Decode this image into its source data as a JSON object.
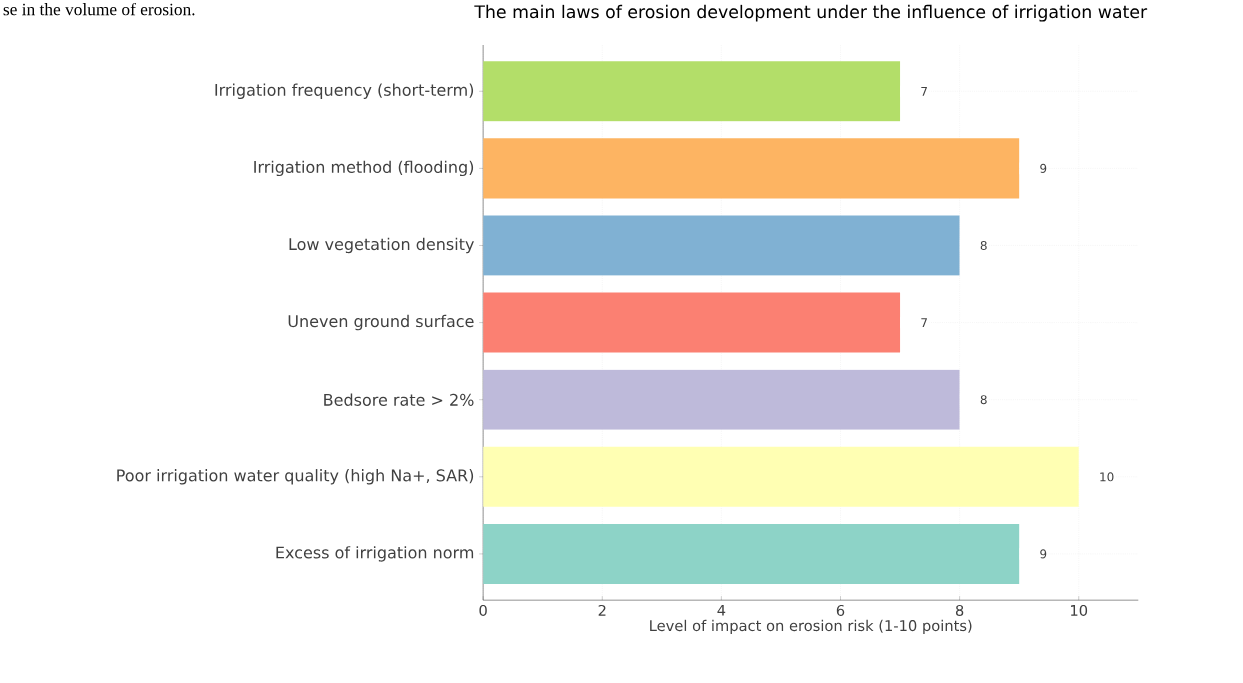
{
  "chart_data": {
    "type": "bar",
    "orientation": "horizontal",
    "title": "The main laws of erosion development under the influence of irrigation water",
    "xlabel": "Level of impact on erosion risk (1-10 points)",
    "annotations": [
      "se in the volume of erosion."
    ],
    "categories": [
      "Irrigation frequency (short-term)",
      "Irrigation method (flooding)",
      "Low vegetation density",
      "Uneven ground surface",
      "Bedsore rate > 2%",
      "Poor irrigation water quality (high Na+, SAR)",
      "Excess of irrigation norm"
    ],
    "values": [
      7,
      9,
      8,
      7,
      8,
      10,
      9
    ],
    "colors": [
      "#b3de69",
      "#fdb462",
      "#80b1d3",
      "#fb8072",
      "#bebada",
      "#ffffb3",
      "#8dd3c7"
    ],
    "xlim": [
      0,
      11
    ],
    "xticks": [
      0,
      2,
      4,
      6,
      8,
      10
    ],
    "grid": true,
    "data_labels": true
  }
}
